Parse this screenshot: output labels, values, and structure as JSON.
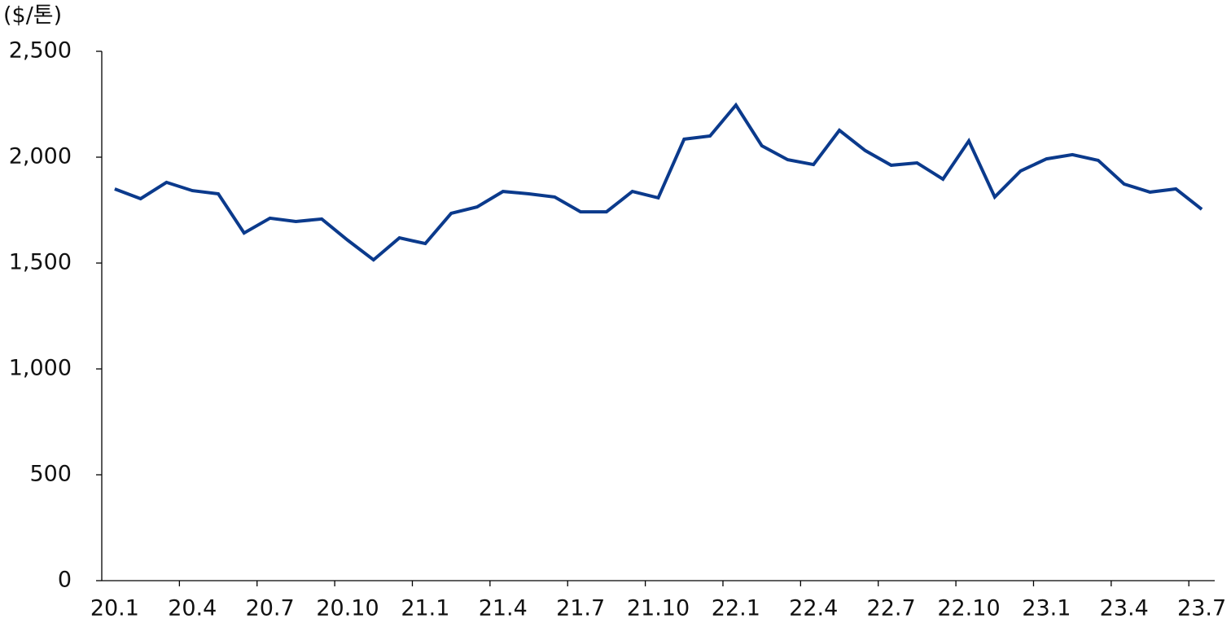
{
  "chart_data": {
    "type": "line",
    "y_label": "($/톤)",
    "categories": [
      "20.1",
      null,
      null,
      "20.4",
      null,
      null,
      "20.7",
      null,
      null,
      "20.10",
      null,
      null,
      "21.1",
      null,
      null,
      "21.4",
      null,
      null,
      "21.7",
      null,
      null,
      "21.10",
      null,
      null,
      "22.1",
      null,
      null,
      "22.4",
      null,
      null,
      "22.7",
      null,
      null,
      "22.10",
      null,
      null,
      "23.1",
      null,
      null,
      "23.4",
      null,
      null,
      "23.7"
    ],
    "series": [
      {
        "color": "#0b3a8c",
        "values": [
          1850,
          1804,
          1881,
          1842,
          1827,
          1642,
          1712,
          1696,
          1708,
          1608,
          1515,
          1619,
          1592,
          1735,
          1765,
          1838,
          1827,
          1812,
          1742,
          1742,
          1838,
          1808,
          2085,
          2100,
          2246,
          2054,
          1988,
          1965,
          2127,
          2031,
          1962,
          1973,
          1896,
          2077,
          1812,
          1935,
          1992,
          2012,
          1985,
          1873,
          1835,
          1850,
          1754
        ]
      }
    ],
    "ylim": [
      0,
      2500
    ],
    "yticks": [
      0,
      500,
      {
        "value": 1000,
        "label": "1,000"
      },
      {
        "value": 1500,
        "label": "1,500"
      },
      {
        "value": 2000,
        "label": "2,000"
      },
      {
        "value": 2500,
        "label": "2,500"
      }
    ]
  }
}
